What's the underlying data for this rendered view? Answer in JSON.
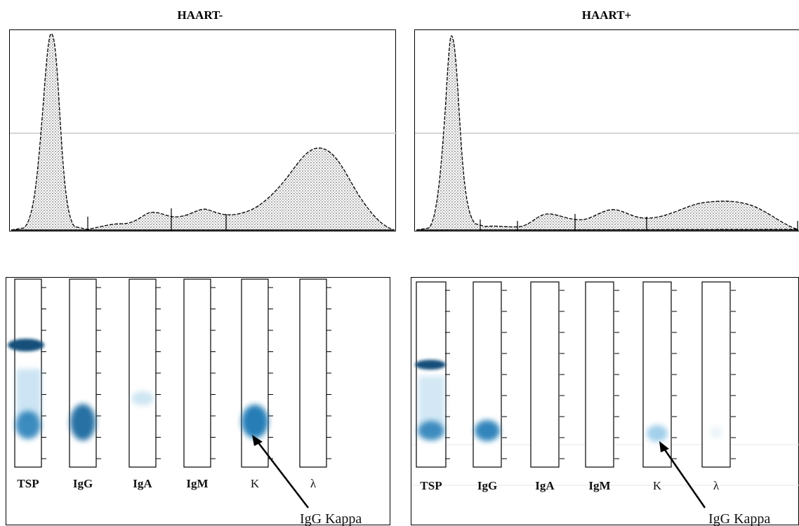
{
  "panels": [
    {
      "id": "haart-neg",
      "title": "HAART-",
      "lane_labels": [
        "TSP",
        "IgG",
        "IgA",
        "IgM",
        "K",
        "λ"
      ],
      "callout": "IgG Kappa"
    },
    {
      "id": "haart-pos",
      "title": "HAART+",
      "lane_labels": [
        "TSP",
        "IgG",
        "IgA",
        "IgM",
        "K",
        "λ"
      ],
      "callout": "IgG Kappa"
    }
  ],
  "colors": {
    "band": "#1a78b4",
    "band_dark": "#12507a",
    "stipple": "#555555"
  }
}
